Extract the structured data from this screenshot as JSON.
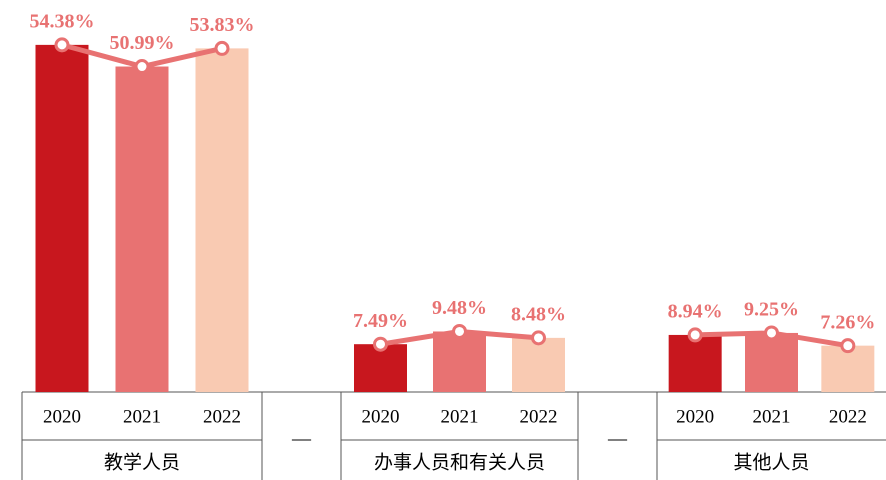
{
  "chart_data": {
    "type": "bar",
    "categories": [
      "教学人员",
      "—",
      "办事人员和有关人员",
      "—",
      "其他人员"
    ],
    "series": [
      {
        "name": "2020",
        "color": "#c8171e",
        "values": [
          54.38,
          null,
          7.49,
          null,
          8.94
        ],
        "value_labels": [
          "54.38%",
          null,
          "7.49%",
          null,
          "8.94%"
        ]
      },
      {
        "name": "2021",
        "color": "#e87272",
        "values": [
          50.99,
          null,
          9.48,
          null,
          9.25
        ],
        "value_labels": [
          "50.99%",
          null,
          "9.48%",
          null,
          "9.25%"
        ]
      },
      {
        "name": "2022",
        "color": "#f9cab2",
        "values": [
          53.83,
          null,
          8.48,
          null,
          7.26
        ],
        "value_labels": [
          "53.83%",
          null,
          "8.48%",
          null,
          "7.26%"
        ]
      }
    ],
    "line_color": "#e87272",
    "ylim": [
      0,
      60
    ]
  }
}
